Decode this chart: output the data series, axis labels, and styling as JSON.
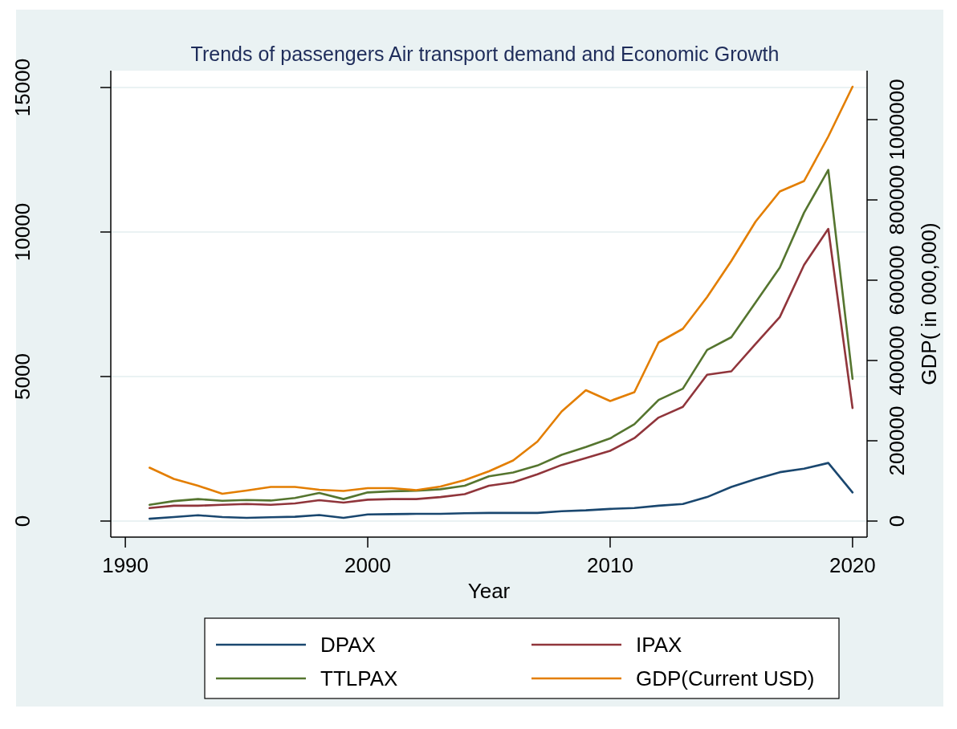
{
  "chart_data": {
    "type": "line",
    "title": "Trends of passengers Air transport demand and Economic Growth",
    "xlabel": "Year",
    "y2label": "GDP( in 000,000)",
    "x": [
      1991,
      1992,
      1993,
      1994,
      1995,
      1996,
      1997,
      1998,
      1999,
      2000,
      2001,
      2002,
      2003,
      2004,
      2005,
      2006,
      2007,
      2008,
      2009,
      2010,
      2011,
      2012,
      2013,
      2014,
      2015,
      2016,
      2017,
      2018,
      2019,
      2020
    ],
    "xlim": [
      1989.4,
      2020.6
    ],
    "xticks": [
      1990,
      2000,
      2010,
      2020
    ],
    "ylim": [
      -556,
      15583
    ],
    "yticks": [
      0,
      5000,
      10000,
      15000
    ],
    "y2lim": [
      -40000,
      1122000
    ],
    "y2ticks": [
      0,
      200000,
      400000,
      600000,
      800000,
      1000000
    ],
    "grid": "y",
    "legend": "bottom",
    "line_style": "solid",
    "marker": "none",
    "series": [
      {
        "name": "DPAX",
        "color": "#1a476f",
        "values": [
          80,
          140,
          200,
          140,
          110,
          130,
          150,
          210,
          110,
          230,
          240,
          250,
          250,
          270,
          280,
          280,
          280,
          340,
          370,
          420,
          450,
          530,
          590,
          830,
          1180,
          1450,
          1690,
          1810,
          2010,
          990
        ]
      },
      {
        "name": "IPAX",
        "color": "#90353b",
        "values": [
          450,
          530,
          530,
          560,
          590,
          560,
          610,
          720,
          640,
          740,
          760,
          760,
          830,
          930,
          1220,
          1340,
          1620,
          1940,
          2180,
          2430,
          2870,
          3580,
          3950,
          5060,
          5180,
          6130,
          7060,
          8860,
          10110,
          3910
        ]
      },
      {
        "name": "TTLPAX",
        "color": "#55752f",
        "values": [
          560,
          690,
          760,
          700,
          730,
          710,
          800,
          970,
          760,
          990,
          1030,
          1050,
          1100,
          1220,
          1550,
          1680,
          1920,
          2290,
          2560,
          2860,
          3350,
          4190,
          4580,
          5920,
          6360,
          7560,
          8770,
          10670,
          12150,
          4920
        ]
      },
      {
        "name": "GDP(Current USD)",
        "color": "#e37e00",
        "axis": "y2",
        "values": [
          133000,
          105000,
          88000,
          68000,
          76000,
          85000,
          85000,
          78000,
          75000,
          82000,
          82000,
          77000,
          86000,
          102000,
          124000,
          151000,
          198000,
          273000,
          326000,
          299000,
          321000,
          445000,
          479000,
          558000,
          648000,
          746000,
          821000,
          847000,
          958000,
          1082000
        ]
      }
    ]
  }
}
